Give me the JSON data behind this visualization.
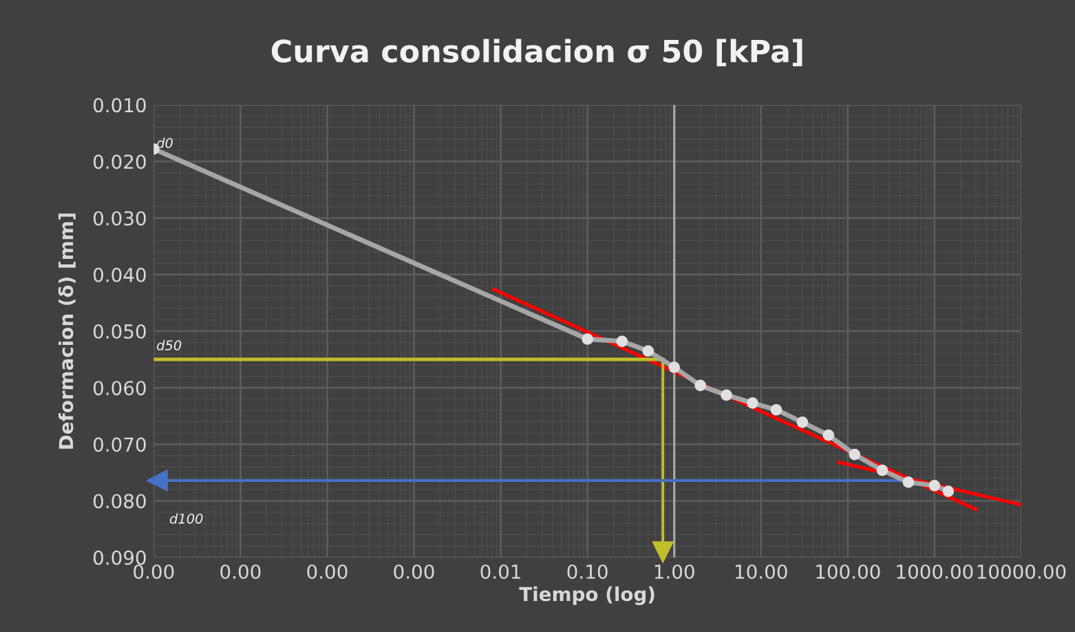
{
  "chart_data": {
    "type": "line",
    "title": "Curva consolidacion σ 50 [kPa]",
    "xlabel": "Tiempo (log)",
    "ylabel": "Deformacion (δ) [mm]",
    "log": "x",
    "grid": true,
    "xlim": [
      1e-06,
      10000
    ],
    "ylim": [
      0.09,
      0.01
    ],
    "xticks": [
      {
        "value": 1e-06,
        "label": "0.00"
      },
      {
        "value": 1e-05,
        "label": "0.00"
      },
      {
        "value": 0.0001,
        "label": "0.00"
      },
      {
        "value": 0.001,
        "label": "0.00"
      },
      {
        "value": 0.01,
        "label": "0.01"
      },
      {
        "value": 0.1,
        "label": "0.10"
      },
      {
        "value": 1,
        "label": "1.00"
      },
      {
        "value": 10,
        "label": "10.00"
      },
      {
        "value": 100,
        "label": "100.00"
      },
      {
        "value": 1000,
        "label": "1000.00"
      },
      {
        "value": 10000,
        "label": "10000.00"
      }
    ],
    "yticks": [
      {
        "value": 0.01,
        "label": "0.010"
      },
      {
        "value": 0.02,
        "label": "0.020"
      },
      {
        "value": 0.03,
        "label": "0.030"
      },
      {
        "value": 0.04,
        "label": "0.040"
      },
      {
        "value": 0.05,
        "label": "0.050"
      },
      {
        "value": 0.06,
        "label": "0.060"
      },
      {
        "value": 0.07,
        "label": "0.070"
      },
      {
        "value": 0.08,
        "label": "0.080"
      },
      {
        "value": 0.09,
        "label": "0.090"
      }
    ],
    "series": [
      {
        "color": "#a6a6a6",
        "marker": "circle",
        "x": [
          1e-06,
          0.1,
          0.25,
          0.5,
          1,
          2,
          4,
          8,
          15,
          30,
          60,
          120,
          250,
          500,
          1000,
          1440
        ],
        "values": [
          0.0178,
          0.0514,
          0.0518,
          0.0535,
          0.0564,
          0.0596,
          0.0613,
          0.0627,
          0.0639,
          0.0661,
          0.0684,
          0.0718,
          0.0746,
          0.0767,
          0.0773,
          0.0783
        ]
      },
      {
        "color": "#ff0000",
        "marker": "none",
        "x": [
          0.0083,
          3000
        ],
        "values": [
          0.0426,
          0.0815
        ]
      },
      {
        "color": "#ff0000",
        "marker": "none",
        "x": [
          80,
          10000
        ],
        "values": [
          0.0732,
          0.0807
        ]
      },
      {
        "color": "#bfbf2a",
        "marker": "none",
        "x": [
          1e-06,
          0.74
        ],
        "values": [
          0.055,
          0.055
        ]
      },
      {
        "color": "#bfbf2a",
        "marker": "triangle",
        "x": [
          0.74,
          0.74
        ],
        "values": [
          0.055,
          0.089
        ]
      },
      {
        "color": "#4472c4",
        "marker": "triangle",
        "x": [
          450,
          1.1e-06
        ],
        "values": [
          0.0764,
          0.0764
        ]
      }
    ],
    "ref_lines": [
      {
        "axis": "x",
        "value": 1,
        "color": "#a6a6a6"
      }
    ],
    "annotations": [
      "d0",
      "d50",
      "d100"
    ]
  }
}
